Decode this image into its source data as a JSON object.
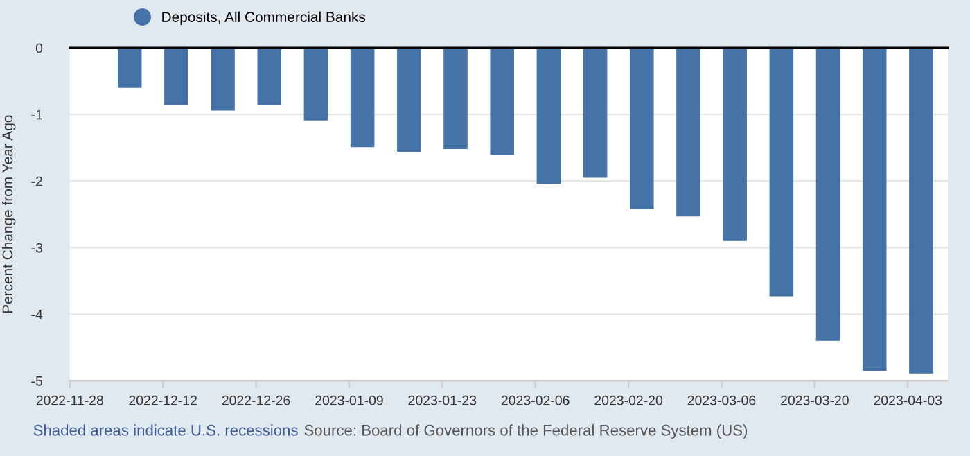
{
  "chart_data": {
    "type": "bar",
    "x": [
      "2022-12-07",
      "2022-12-14",
      "2022-12-21",
      "2022-12-28",
      "2023-01-04",
      "2023-01-11",
      "2023-01-18",
      "2023-01-25",
      "2023-02-01",
      "2023-02-08",
      "2023-02-15",
      "2023-02-22",
      "2023-03-01",
      "2023-03-08",
      "2023-03-15",
      "2023-03-22",
      "2023-03-29",
      "2023-04-05"
    ],
    "series": [
      {
        "name": "Deposits, All Commercial Banks",
        "color": "#4572a7",
        "values": [
          -0.6,
          -0.86,
          -0.94,
          -0.86,
          -1.09,
          -1.49,
          -1.56,
          -1.52,
          -1.61,
          -2.04,
          -1.95,
          -2.42,
          -2.53,
          -2.9,
          -3.73,
          -4.4,
          -4.85,
          -4.89
        ]
      }
    ],
    "ylabel": "Percent Change from Year Ago",
    "xlim": [
      "2022-11-28",
      "2023-04-09"
    ],
    "xticks": [
      "2022-11-28",
      "2022-12-12",
      "2022-12-26",
      "2023-01-09",
      "2023-01-23",
      "2023-02-06",
      "2023-02-20",
      "2023-03-06",
      "2023-03-20",
      "2023-04-03"
    ],
    "ylim": [
      -5,
      0
    ],
    "yticks": [
      0,
      -1,
      -2,
      -3,
      -4,
      -5
    ],
    "grid": "y",
    "legend": "top left",
    "annotations": [
      "Shaded areas indicate U.S. recessions",
      "Source: Board of Governors of the Federal Reserve System (US)"
    ]
  }
}
